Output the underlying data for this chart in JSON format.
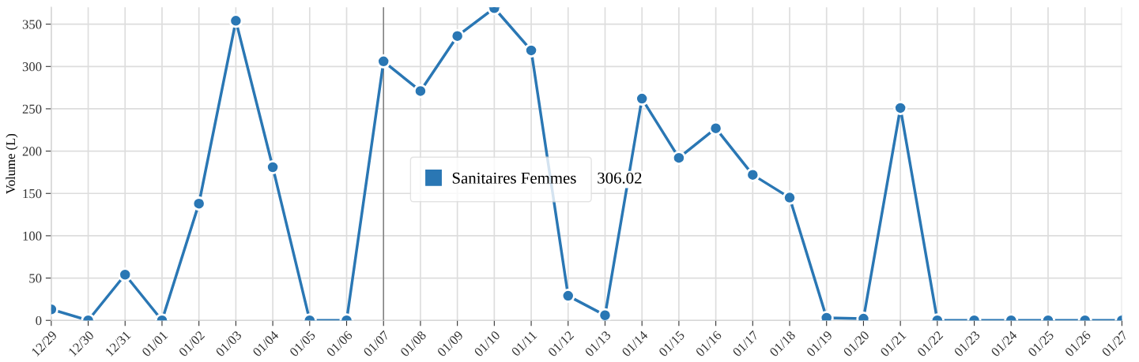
{
  "chart_data": {
    "type": "line",
    "ylabel": "Volume (L)",
    "categories": [
      "12/29",
      "12/30",
      "12/31",
      "01/01",
      "01/02",
      "01/03",
      "01/04",
      "01/05",
      "01/06",
      "01/07",
      "01/08",
      "01/09",
      "01/10",
      "01/11",
      "01/12",
      "01/13",
      "01/14",
      "01/15",
      "01/16",
      "01/17",
      "01/18",
      "01/19",
      "01/20",
      "01/21",
      "01/22",
      "01/23",
      "01/24",
      "01/25",
      "01/26",
      "01/27"
    ],
    "series": [
      {
        "name": "Sanitaires Femmes",
        "color": "#2a77b4",
        "values": [
          13,
          0,
          54,
          0,
          138,
          354,
          181,
          0,
          0,
          306.02,
          271,
          336,
          369,
          319,
          29,
          6,
          262,
          192,
          227,
          172,
          145,
          3,
          2,
          251,
          0,
          0,
          0,
          0,
          0,
          0
        ]
      }
    ],
    "ylim": [
      0,
      370
    ],
    "yticks": [
      0,
      50,
      100,
      150,
      200,
      250,
      300,
      350
    ],
    "grid": true,
    "marker": "circle",
    "line_style": "solid",
    "legend": "center",
    "ref_lines": [
      {
        "axis": "x",
        "value": "01/07",
        "color": "#777777"
      }
    ],
    "annotations": [
      "306.02"
    ]
  }
}
